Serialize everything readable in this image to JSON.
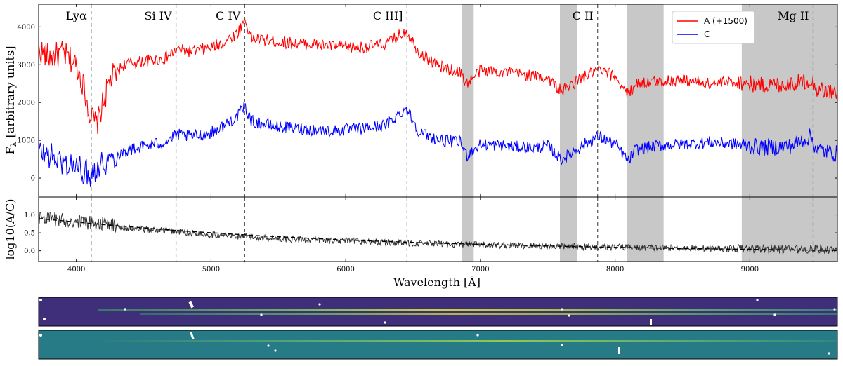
{
  "chart_data": [
    {
      "type": "line",
      "panel": "spectra",
      "xlim": [
        3720,
        9650
      ],
      "ylim": [
        -500,
        4600
      ],
      "xticks": [
        4000,
        5000,
        6000,
        7000,
        8000,
        9000
      ],
      "yticks": [
        0,
        1000,
        2000,
        3000,
        4000
      ],
      "ylabel": "F",
      "ylabel_sub": "λ",
      "ylabel_rest": "[arbitrary units]",
      "legend_placement": "top-right",
      "emission_lines": [
        {
          "name": "Lyα",
          "wavelength": 4110
        },
        {
          "name": "Si IV",
          "wavelength": 4740
        },
        {
          "name": "C IV",
          "wavelength": 5250
        },
        {
          "name": "C III]",
          "wavelength": 6455
        },
        {
          "name": "C II",
          "wavelength": 7870
        },
        {
          "name": "Mg II",
          "wavelength": 9470
        }
      ],
      "shaded_regions": [
        [
          6860,
          6950
        ],
        [
          7590,
          7720
        ],
        [
          8090,
          8360
        ],
        [
          8940,
          9650
        ]
      ],
      "series": [
        {
          "name": "A (+1500)",
          "color": "#ff0000",
          "x": [
            3720,
            3800,
            3900,
            4000,
            4050,
            4100,
            4150,
            4250,
            4350,
            4500,
            4650,
            4750,
            4850,
            5000,
            5100,
            5200,
            5250,
            5300,
            5500,
            5700,
            5900,
            6100,
            6300,
            6450,
            6550,
            6700,
            6850,
            6900,
            7000,
            7200,
            7400,
            7500,
            7600,
            7650,
            7750,
            7870,
            8000,
            8100,
            8150,
            8300,
            8500,
            8700,
            8900,
            9100,
            9300,
            9450,
            9500,
            9650
          ],
          "y": [
            3400,
            3200,
            3300,
            3000,
            2500,
            1700,
            1400,
            2600,
            3000,
            3100,
            3150,
            3400,
            3350,
            3450,
            3600,
            3850,
            4200,
            3700,
            3600,
            3550,
            3500,
            3450,
            3550,
            3900,
            3300,
            2950,
            2800,
            2500,
            2850,
            2800,
            2700,
            2650,
            2300,
            2400,
            2650,
            2850,
            2700,
            2200,
            2500,
            2550,
            2600,
            2500,
            2550,
            2450,
            2500,
            2600,
            2350,
            2250
          ]
        },
        {
          "name": "C",
          "color": "#0000ff",
          "x": [
            3720,
            3800,
            3900,
            4000,
            4100,
            4150,
            4250,
            4350,
            4500,
            4650,
            4750,
            4850,
            5000,
            5100,
            5200,
            5250,
            5300,
            5500,
            5700,
            5900,
            6100,
            6300,
            6450,
            6550,
            6700,
            6850,
            6900,
            7000,
            7200,
            7400,
            7500,
            7600,
            7650,
            7750,
            7870,
            8000,
            8100,
            8150,
            8300,
            8500,
            8700,
            8900,
            9100,
            9300,
            9450,
            9500,
            9650
          ],
          "y": [
            700,
            600,
            400,
            300,
            100,
            300,
            500,
            700,
            850,
            950,
            1150,
            1100,
            1200,
            1400,
            1650,
            1900,
            1500,
            1350,
            1300,
            1250,
            1300,
            1400,
            1850,
            1200,
            1000,
            950,
            600,
            900,
            850,
            800,
            850,
            500,
            600,
            850,
            1100,
            900,
            450,
            750,
            850,
            900,
            950,
            900,
            800,
            850,
            1100,
            750,
            650
          ]
        }
      ]
    },
    {
      "type": "line",
      "panel": "ratio",
      "xlim": [
        3720,
        9650
      ],
      "ylim": [
        -0.3,
        1.5
      ],
      "xticks": [
        4000,
        5000,
        6000,
        7000,
        8000,
        9000
      ],
      "yticks": [
        0.0,
        0.5,
        1.0
      ],
      "ytick_labels": [
        "0.0",
        "0.5",
        "1.0"
      ],
      "xlabel": "Wavelength [Å]",
      "ylabel": "log10(A/C)",
      "series": [
        {
          "name": "",
          "color": "#333333",
          "x": [
            3720,
            3900,
            4050,
            4200,
            4400,
            4700,
            5000,
            5300,
            5600,
            6000,
            6400,
            6800,
            7200,
            7600,
            8000,
            8400,
            8800,
            9200,
            9650
          ],
          "y": [
            0.95,
            0.85,
            0.8,
            0.75,
            0.62,
            0.55,
            0.45,
            0.38,
            0.32,
            0.28,
            0.22,
            0.18,
            0.15,
            0.12,
            0.1,
            0.08,
            0.06,
            0.05,
            0.04
          ]
        },
        {
          "name": "",
          "color": "#000000",
          "dash": "6 4",
          "x": [
            3720,
            4200,
            4800,
            5400,
            6000,
            6600,
            7200,
            7800,
            8400,
            9000,
            9650
          ],
          "y": [
            0.9,
            0.73,
            0.55,
            0.41,
            0.3,
            0.22,
            0.16,
            0.11,
            0.07,
            0.04,
            0.01
          ]
        }
      ]
    }
  ]
}
